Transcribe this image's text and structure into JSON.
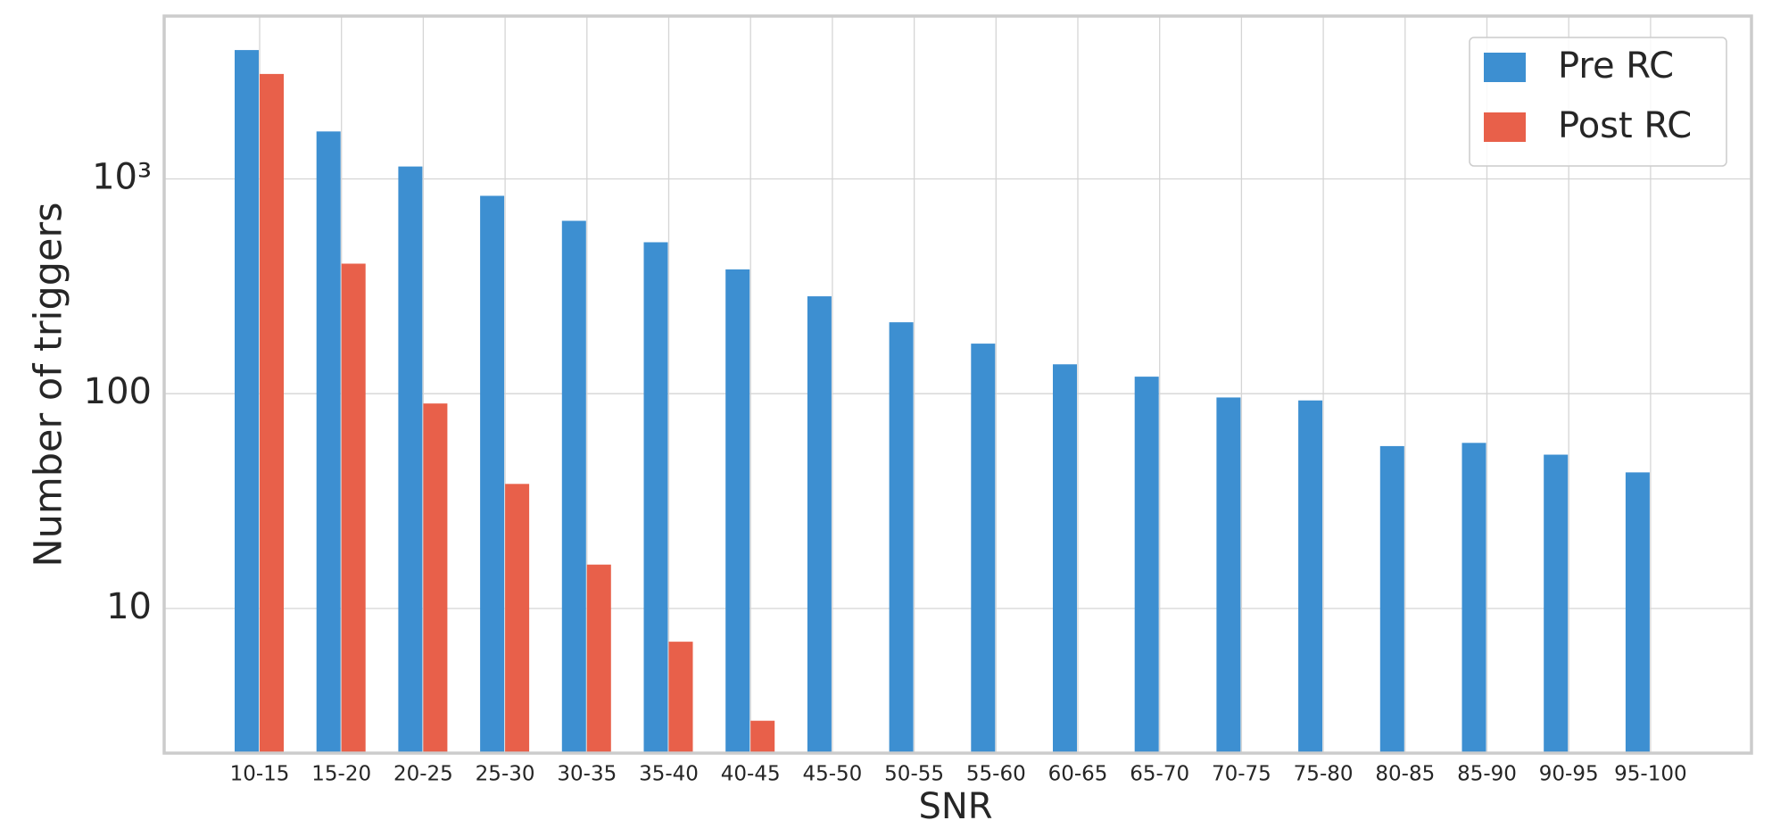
{
  "chart_data": {
    "type": "bar",
    "x_label": "SNR",
    "y_label": "Number of triggers",
    "categories": [
      "10-15",
      "15-20",
      "20-25",
      "25-30",
      "30-35",
      "35-40",
      "40-45",
      "45-50",
      "50-55",
      "55-60",
      "60-65",
      "65-70",
      "70-75",
      "75-80",
      "80-85",
      "85-90",
      "90-95",
      "95-100"
    ],
    "series": [
      {
        "name": "Pre RC",
        "color": "#3d8fd1",
        "values": [
          3980,
          1663,
          1142,
          834,
          638,
          507,
          379,
          284,
          215,
          171,
          137,
          120,
          96,
          93,
          57,
          59,
          52,
          43
        ]
      },
      {
        "name": "Post RC",
        "color": "#e8604a",
        "values": [
          3080,
          403,
          90,
          38,
          16,
          7,
          3,
          null,
          null,
          null,
          null,
          null,
          null,
          null,
          null,
          null,
          null,
          null
        ]
      }
    ],
    "log_y": true,
    "ylim": [
      2.12,
      5730
    ],
    "yticks": [
      10,
      100,
      {
        "value": 1000,
        "label": "10³"
      }
    ],
    "grid": true,
    "legend": "upper right"
  }
}
